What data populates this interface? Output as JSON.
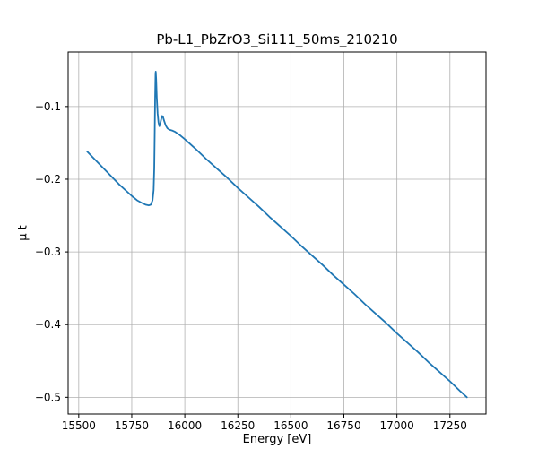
{
  "chart_data": {
    "type": "line",
    "title": "Pb-L1_PbZrO3_Si111_50ms_210210",
    "xlabel": "Energy [eV]",
    "ylabel": "μ t",
    "line_color": "#1f77b4",
    "line_width": 1.8,
    "grid": true,
    "grid_color": "#b0b0b0",
    "spine_color": "#000000",
    "background_color": "#ffffff",
    "legend": "none",
    "xlim": [
      15450,
      17420
    ],
    "ylim": [
      -0.523,
      -0.025
    ],
    "xticks": [
      15500,
      15750,
      16000,
      16250,
      16500,
      16750,
      17000,
      17250
    ],
    "xtick_labels": [
      "15500",
      "15750",
      "16000",
      "16250",
      "16500",
      "16750",
      "17000",
      "17250"
    ],
    "yticks": [
      -0.5,
      -0.4,
      -0.3,
      -0.2,
      -0.1
    ],
    "ytick_labels": [
      "−0.5",
      "−0.4",
      "−0.3",
      "−0.2",
      "−0.1"
    ],
    "series": [
      {
        "name": "mu_t_absorption",
        "x": [
          15540,
          15570,
          15600,
          15630,
          15660,
          15690,
          15720,
          15750,
          15775,
          15800,
          15815,
          15830,
          15840,
          15848,
          15853,
          15856,
          15858,
          15860,
          15862,
          15863,
          15865,
          15868,
          15872,
          15876,
          15880,
          15884,
          15889,
          15893,
          15897,
          15903,
          15910,
          15918,
          15928,
          15940,
          15955,
          15975,
          16000,
          16050,
          16100,
          16150,
          16200,
          16250,
          16300,
          16350,
          16400,
          16450,
          16500,
          16550,
          16600,
          16650,
          16700,
          16750,
          16800,
          16850,
          16900,
          16950,
          17000,
          17050,
          17100,
          17150,
          17200,
          17250,
          17300,
          17330
        ],
        "y": [
          -0.162,
          -0.171,
          -0.18,
          -0.189,
          -0.198,
          -0.207,
          -0.215,
          -0.223,
          -0.229,
          -0.233,
          -0.235,
          -0.236,
          -0.235,
          -0.229,
          -0.215,
          -0.185,
          -0.14,
          -0.09,
          -0.056,
          -0.052,
          -0.062,
          -0.088,
          -0.11,
          -0.122,
          -0.127,
          -0.124,
          -0.117,
          -0.113,
          -0.114,
          -0.12,
          -0.126,
          -0.13,
          -0.132,
          -0.133,
          -0.135,
          -0.139,
          -0.145,
          -0.158,
          -0.172,
          -0.185,
          -0.198,
          -0.212,
          -0.225,
          -0.238,
          -0.252,
          -0.265,
          -0.278,
          -0.292,
          -0.305,
          -0.318,
          -0.332,
          -0.345,
          -0.358,
          -0.372,
          -0.385,
          -0.398,
          -0.412,
          -0.425,
          -0.438,
          -0.452,
          -0.465,
          -0.478,
          -0.492,
          -0.5
        ]
      }
    ]
  }
}
